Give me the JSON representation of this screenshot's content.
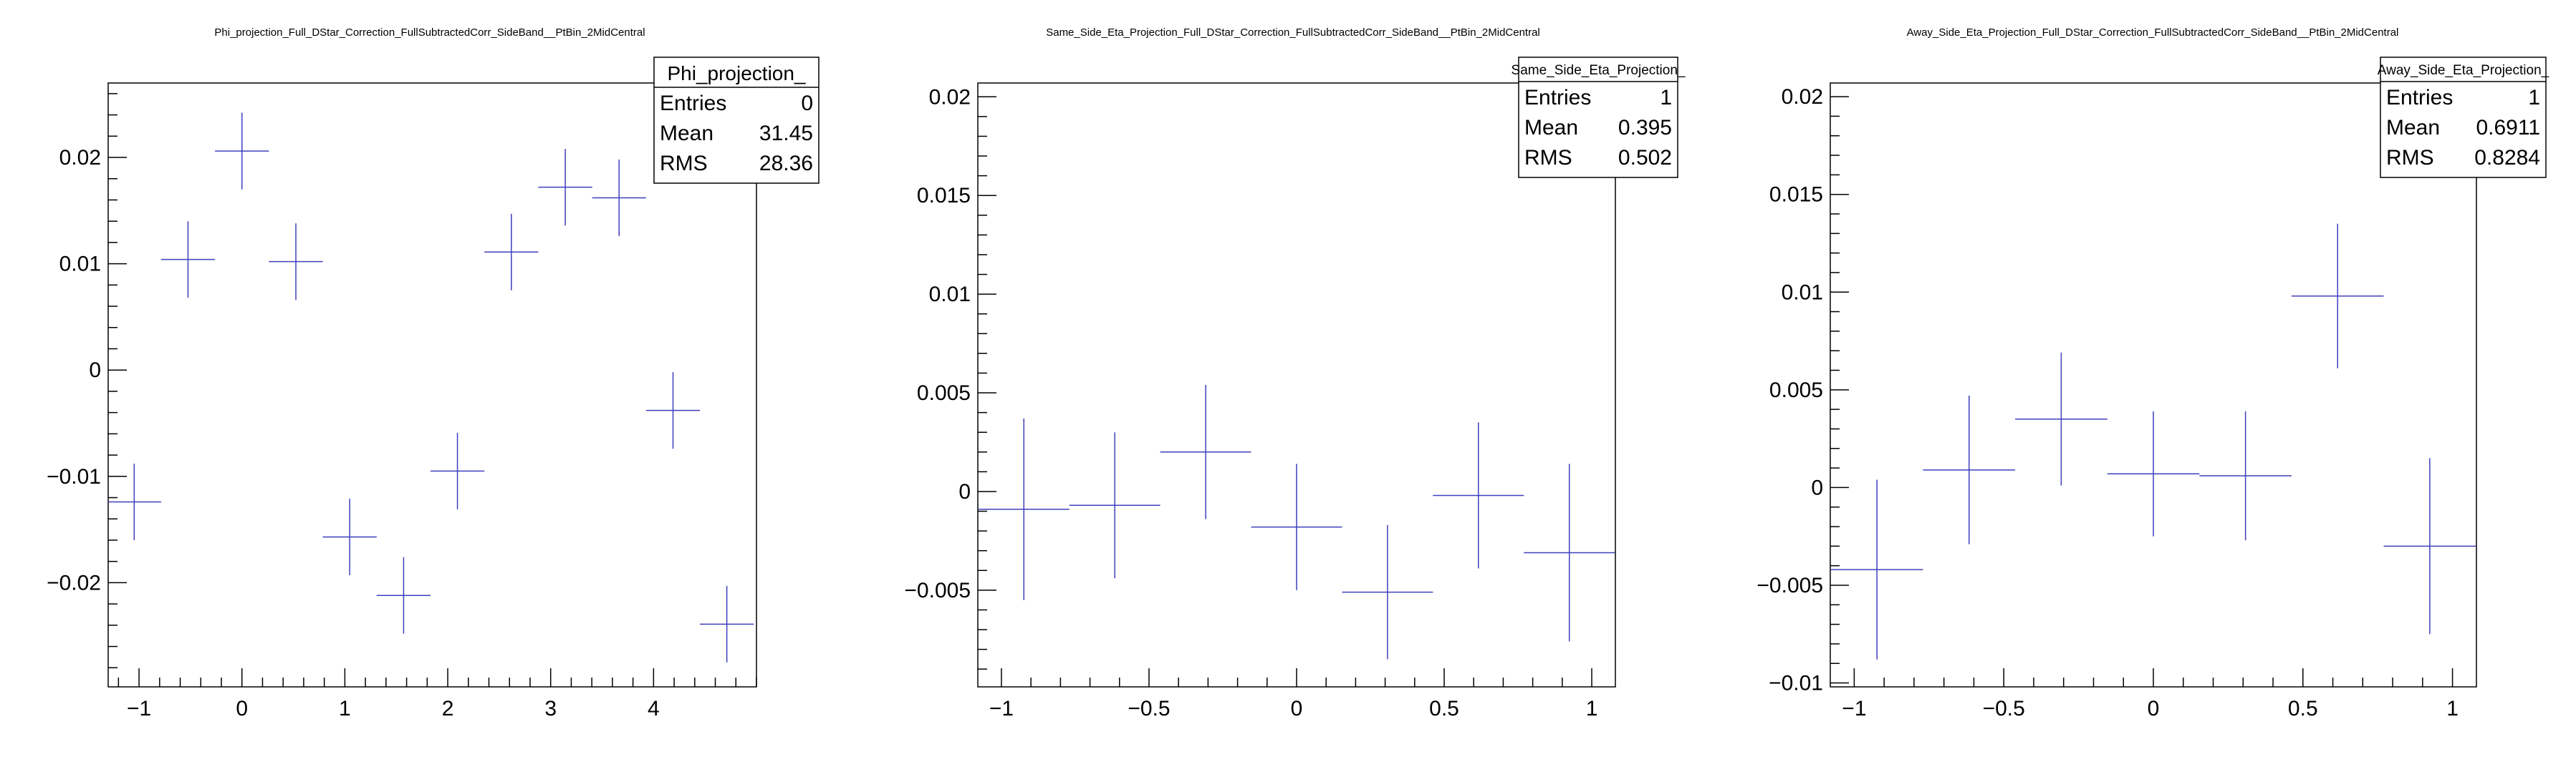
{
  "chart_data": [
    {
      "type": "scatter",
      "title": "Phi_projection_Full_DStar_Correction_FullSubtractedCorr_SideBand__PtBin_2MidCentral",
      "xlabel": "",
      "ylabel": "",
      "xlim": [
        -1.3,
        5.0
      ],
      "ylim": [
        -0.0298,
        0.027
      ],
      "x_ticks": [
        -1,
        0,
        1,
        2,
        3,
        4
      ],
      "x_tick_labels": [
        "−1",
        "0",
        "1",
        "2",
        "3",
        "4"
      ],
      "y_ticks": [
        -0.02,
        -0.01,
        0,
        0.01,
        0.02
      ],
      "y_tick_labels": [
        "−0.02",
        "−0.01",
        "0",
        "0.01",
        "0.02"
      ],
      "x_half_width": 0.262,
      "points": [
        {
          "x": -1.047,
          "y": -0.0124,
          "err": 0.0036
        },
        {
          "x": -0.524,
          "y": 0.0104,
          "err": 0.0036
        },
        {
          "x": 0.0,
          "y": 0.0206,
          "err": 0.0036
        },
        {
          "x": 0.524,
          "y": 0.0102,
          "err": 0.0036
        },
        {
          "x": 1.047,
          "y": -0.0157,
          "err": 0.0036
        },
        {
          "x": 1.571,
          "y": -0.0212,
          "err": 0.0036
        },
        {
          "x": 2.094,
          "y": -0.0095,
          "err": 0.0036
        },
        {
          "x": 2.618,
          "y": 0.0111,
          "err": 0.0036
        },
        {
          "x": 3.142,
          "y": 0.0172,
          "err": 0.0036
        },
        {
          "x": 3.665,
          "y": 0.0162,
          "err": 0.0036
        },
        {
          "x": 4.189,
          "y": -0.0038,
          "err": 0.0036
        },
        {
          "x": 4.712,
          "y": -0.0239,
          "err": 0.0036
        }
      ],
      "stats": {
        "name": "Phi_projection_",
        "rows": [
          {
            "label": "Entries",
            "value": "0"
          },
          {
            "label": "Mean",
            "value": "31.45"
          },
          {
            "label": "RMS",
            "value": "28.36"
          }
        ]
      },
      "color": "#3f3fbf",
      "grid": false
    },
    {
      "type": "scatter",
      "title": "Same_Side_Eta_Projection_Full_DStar_Correction_FullSubtractedCorr_SideBand__PtBin_2MidCentral",
      "xlabel": "",
      "ylabel": "",
      "xlim": [
        -1.08,
        1.08
      ],
      "ylim": [
        -0.0099,
        0.0207
      ],
      "x_ticks": [
        -1,
        -0.5,
        0,
        0.5,
        1
      ],
      "x_tick_labels": [
        "−1",
        "−0.5",
        "0",
        "0.5",
        "1"
      ],
      "y_ticks": [
        -0.005,
        0,
        0.005,
        0.01,
        0.015,
        0.02
      ],
      "y_tick_labels": [
        "−0.005",
        "0",
        "0.005",
        "0.01",
        "0.015",
        "0.02"
      ],
      "x_half_width": 0.154,
      "points": [
        {
          "x": -0.924,
          "y": -0.0009,
          "err": 0.0046
        },
        {
          "x": -0.616,
          "y": -0.0007,
          "err": 0.0037
        },
        {
          "x": -0.308,
          "y": 0.002,
          "err": 0.0034
        },
        {
          "x": 0.0,
          "y": -0.0018,
          "err": 0.0032
        },
        {
          "x": 0.308,
          "y": -0.0051,
          "err": 0.0034
        },
        {
          "x": 0.616,
          "y": -0.0002,
          "err": 0.0037
        },
        {
          "x": 0.924,
          "y": -0.0031,
          "err": 0.0045
        }
      ],
      "stats": {
        "name": "Same_Side_Eta_Projection_",
        "rows": [
          {
            "label": "Entries",
            "value": "1"
          },
          {
            "label": "Mean",
            "value": "0.395"
          },
          {
            "label": "RMS",
            "value": "0.502"
          }
        ]
      },
      "color": "#3f3fbf",
      "grid": false
    },
    {
      "type": "scatter",
      "title": "Away_Side_Eta_Projection_Full_DStar_Correction_FullSubtractedCorr_SideBand__PtBin_2MidCentral",
      "xlabel": "",
      "ylabel": "",
      "xlim": [
        -1.08,
        1.08
      ],
      "ylim": [
        -0.0102,
        0.0207
      ],
      "x_ticks": [
        -1,
        -0.5,
        0,
        0.5,
        1
      ],
      "x_tick_labels": [
        "−1",
        "−0.5",
        "0",
        "0.5",
        "1"
      ],
      "y_ticks": [
        -0.01,
        -0.005,
        0,
        0.005,
        0.01,
        0.015,
        0.02
      ],
      "y_tick_labels": [
        "−0.01",
        "−0.005",
        "0",
        "0.005",
        "0.01",
        "0.015",
        "0.02"
      ],
      "x_half_width": 0.154,
      "points": [
        {
          "x": -0.924,
          "y": -0.0042,
          "err": 0.0046
        },
        {
          "x": -0.616,
          "y": 0.0009,
          "err": 0.0038
        },
        {
          "x": -0.308,
          "y": 0.0035,
          "err": 0.0034
        },
        {
          "x": 0.0,
          "y": 0.0007,
          "err": 0.0032
        },
        {
          "x": 0.308,
          "y": 0.0006,
          "err": 0.0033
        },
        {
          "x": 0.616,
          "y": 0.0098,
          "err": 0.0037
        },
        {
          "x": 0.924,
          "y": -0.003,
          "err": 0.0045
        }
      ],
      "stats": {
        "name": "Away_Side_Eta_Projection_",
        "rows": [
          {
            "label": "Entries",
            "value": "1"
          },
          {
            "label": "Mean",
            "value": "0.6911"
          },
          {
            "label": "RMS",
            "value": "0.8284"
          }
        ]
      },
      "color": "#3f3fbf",
      "grid": false
    }
  ]
}
